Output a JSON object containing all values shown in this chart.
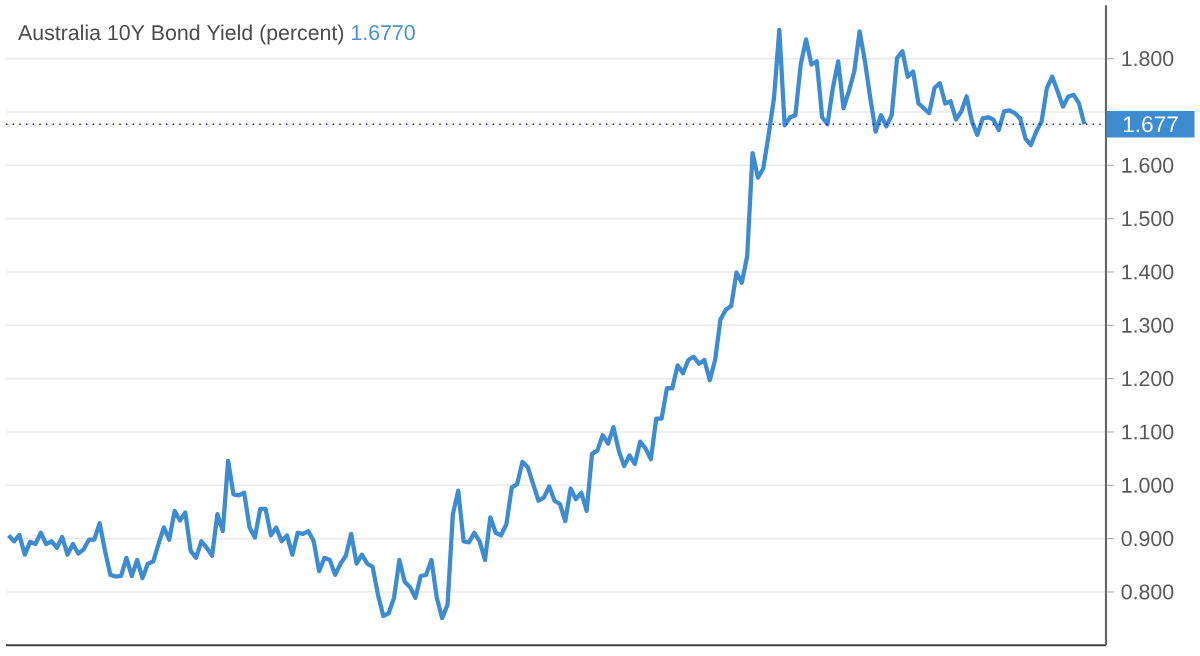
{
  "chart_data": {
    "type": "line",
    "title": "Australia 10Y Bond Yield (percent)",
    "subtitle": "1.6770",
    "categories": [
      null,
      null,
      null,
      null,
      null,
      null,
      null,
      null,
      null,
      null,
      null,
      null,
      null,
      null,
      null,
      null,
      null,
      null,
      null,
      null,
      null,
      null,
      null,
      null,
      null,
      null,
      null,
      null,
      null,
      null,
      null,
      null,
      null,
      null,
      null,
      null,
      null,
      null,
      null,
      null,
      null,
      null,
      null,
      null,
      null,
      null,
      null,
      null,
      null,
      null,
      null,
      null,
      null,
      null,
      null,
      null,
      null,
      null,
      null,
      null,
      null,
      null,
      null,
      null,
      null,
      null,
      null,
      null,
      null,
      null,
      null,
      null,
      null,
      null,
      null,
      null,
      null,
      null,
      null,
      null,
      null,
      null,
      null,
      null,
      null,
      null,
      null,
      null,
      null,
      null,
      null,
      null,
      null,
      null,
      null,
      null,
      null,
      null,
      null,
      null,
      null,
      null,
      null,
      null,
      null,
      null,
      null,
      null,
      null,
      null,
      null,
      null,
      null,
      null,
      null,
      null,
      null,
      null,
      null,
      null,
      null,
      null,
      null,
      null,
      null,
      null,
      null,
      null,
      null,
      null,
      null,
      null,
      null,
      null,
      null,
      null,
      null,
      null,
      null,
      null,
      null,
      null,
      null,
      null,
      null,
      null,
      null,
      null,
      null,
      null,
      null,
      null,
      null,
      null,
      null,
      null,
      null,
      null,
      null,
      null,
      null,
      null,
      null,
      null,
      null,
      null,
      null,
      null,
      null,
      null,
      null,
      null,
      null,
      null,
      null,
      null,
      null,
      null,
      null,
      null,
      null,
      null,
      null,
      null,
      null,
      null,
      null,
      null,
      null,
      null,
      null,
      null,
      null,
      null,
      null,
      null,
      null,
      null,
      null,
      null,
      null,
      null
    ],
    "series": [
      {
        "color": "#3d8bd0",
        "values": [
          0.906,
          0.895,
          0.907,
          0.87,
          0.894,
          0.89,
          0.911,
          0.89,
          0.895,
          0.883,
          0.903,
          0.87,
          0.89,
          0.872,
          0.88,
          0.898,
          0.898,
          0.929,
          0.877,
          0.832,
          0.829,
          0.83,
          0.864,
          0.83,
          0.86,
          0.826,
          0.853,
          0.857,
          0.89,
          0.921,
          0.898,
          0.952,
          0.934,
          0.949,
          0.877,
          0.864,
          0.895,
          0.883,
          0.868,
          0.946,
          0.914,
          1.046,
          0.983,
          0.981,
          0.986,
          0.921,
          0.902,
          0.956,
          0.956,
          0.906,
          0.921,
          0.895,
          0.906,
          0.87,
          0.911,
          0.909,
          0.914,
          0.895,
          0.839,
          0.864,
          0.86,
          0.832,
          0.853,
          0.868,
          0.909,
          0.853,
          0.87,
          0.853,
          0.847,
          0.795,
          0.755,
          0.76,
          0.789,
          0.86,
          0.819,
          0.809,
          0.789,
          0.83,
          0.832,
          0.86,
          0.789,
          0.751,
          0.776,
          0.946,
          0.99,
          0.895,
          0.893,
          0.911,
          0.895,
          0.86,
          0.94,
          0.911,
          0.906,
          0.927,
          0.996,
          1.002,
          1.044,
          1.034,
          1.002,
          0.971,
          0.977,
          0.998,
          0.971,
          0.965,
          0.933,
          0.994,
          0.974,
          0.986,
          0.952,
          1.059,
          1.065,
          1.094,
          1.078,
          1.109,
          1.065,
          1.036,
          1.056,
          1.04,
          1.082,
          1.069,
          1.049,
          1.125,
          1.125,
          1.182,
          1.182,
          1.225,
          1.21,
          1.235,
          1.241,
          1.228,
          1.235,
          1.197,
          1.235,
          1.311,
          1.329,
          1.336,
          1.399,
          1.38,
          1.43,
          1.623,
          1.577,
          1.594,
          1.657,
          1.726,
          1.854,
          1.675,
          1.69,
          1.694,
          1.789,
          1.836,
          1.789,
          1.795,
          1.69,
          1.677,
          1.745,
          1.795,
          1.707,
          1.739,
          1.776,
          1.851,
          1.795,
          1.726,
          1.663,
          1.694,
          1.673,
          1.694,
          1.801,
          1.814,
          1.766,
          1.776,
          1.716,
          1.707,
          1.698,
          1.745,
          1.754,
          1.716,
          1.72,
          1.686,
          1.701,
          1.729,
          1.682,
          1.657,
          1.688,
          1.69,
          1.686,
          1.666,
          1.701,
          1.703,
          1.698,
          1.688,
          1.65,
          1.638,
          1.663,
          1.682,
          1.745,
          1.766,
          1.739,
          1.71,
          1.729,
          1.732,
          1.716,
          1.677
        ]
      }
    ],
    "ylim": [
      0.7,
      1.9
    ],
    "yticks": [
      {
        "value": 0.8,
        "label": "0.800"
      },
      {
        "value": 0.9,
        "label": "0.900"
      },
      {
        "value": 1.0,
        "label": "1.000"
      },
      {
        "value": 1.1,
        "label": "1.100"
      },
      {
        "value": 1.2,
        "label": "1.200"
      },
      {
        "value": 1.3,
        "label": "1.300"
      },
      {
        "value": 1.4,
        "label": "1.400"
      },
      {
        "value": 1.5,
        "label": "1.500"
      },
      {
        "value": 1.6,
        "label": "1.600"
      },
      {
        "value": 1.7,
        "label": null
      },
      {
        "value": 1.8,
        "label": "1.800"
      }
    ],
    "ref_lines": [
      {
        "axis": "y",
        "value": 1.677,
        "label": "1.677",
        "color": "#0000ff",
        "line_style": "dotted"
      }
    ],
    "grid": "y",
    "tick_labels": "y",
    "marker": "none",
    "line_style": "solid"
  }
}
